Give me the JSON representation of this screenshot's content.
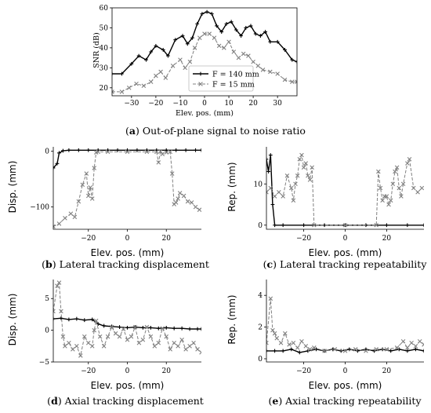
{
  "chart_data": [
    {
      "id": "a",
      "type": "line",
      "caption_letter": "a",
      "caption_text": "Out-of-plane signal to noise ratio",
      "xlabel": "Elev. pos. (mm)",
      "ylabel": "SNR (dB)",
      "xlim": [
        -38,
        38
      ],
      "ylim": [
        16,
        60
      ],
      "xticks": [
        -30,
        -20,
        -10,
        0,
        10,
        20,
        30
      ],
      "yticks": [
        20,
        30,
        40,
        50,
        60
      ],
      "legend": "inside-lower-center",
      "series": [
        {
          "name": "F = 140 mm",
          "style": "solid-plus",
          "color": "#000000",
          "x": [
            -38,
            -34,
            -30,
            -27,
            -24,
            -22,
            -20,
            -17,
            -15,
            -12,
            -9,
            -7,
            -5,
            -3,
            -1,
            1,
            3,
            5,
            7,
            9,
            11,
            13,
            15,
            17,
            19,
            21,
            23,
            25,
            27,
            30,
            33,
            36,
            38
          ],
          "y": [
            27,
            27,
            32,
            36,
            34,
            38,
            41,
            39,
            36,
            44,
            46,
            42,
            45,
            52,
            57,
            58,
            57,
            51,
            48,
            52,
            53,
            49,
            46,
            50,
            51,
            47,
            46,
            48,
            43,
            43,
            39,
            34,
            33
          ]
        },
        {
          "name": "F = 15 mm",
          "style": "dashed-x",
          "color": "#808080",
          "x": [
            -38,
            -34,
            -31,
            -28,
            -25,
            -22,
            -20,
            -18,
            -16,
            -13,
            -10,
            -8,
            -6,
            -4,
            -2,
            0,
            2,
            4,
            6,
            8,
            10,
            12,
            14,
            16,
            18,
            20,
            22,
            24,
            27,
            30,
            33,
            36,
            38
          ],
          "y": [
            18,
            18,
            20,
            22,
            21,
            23,
            26,
            28,
            25,
            31,
            34,
            30,
            33,
            40,
            45,
            47,
            47,
            45,
            41,
            40,
            43,
            38,
            35,
            37,
            36,
            33,
            31,
            29,
            28,
            27,
            24,
            23,
            23
          ]
        }
      ]
    },
    {
      "id": "b",
      "type": "line",
      "caption_letter": "b",
      "caption_text": "Lateral tracking displacement",
      "xlabel": "Elev. pos. (mm)",
      "ylabel": "Disp. (mm)",
      "xlim": [
        -38,
        38
      ],
      "ylim": [
        -140,
        8
      ],
      "xticks": [
        -20,
        0,
        20
      ],
      "yticks": [
        -100,
        0
      ],
      "series": [
        {
          "name": "F = 140 mm",
          "style": "solid-plus",
          "color": "#000000",
          "x": [
            -38,
            -36,
            -35,
            -33,
            -30,
            -25,
            -20,
            -15,
            -10,
            -5,
            0,
            5,
            10,
            15,
            20,
            25,
            30,
            35,
            38
          ],
          "y": [
            -30,
            -22,
            -3,
            1,
            2,
            2,
            2,
            2,
            2,
            2,
            2,
            2,
            2,
            2,
            2,
            2,
            2,
            2,
            2
          ]
        },
        {
          "name": "F = 15 mm",
          "style": "dashed-x",
          "color": "#808080",
          "x": [
            -38,
            -35,
            -32,
            -29,
            -27,
            -25,
            -23,
            -21,
            -20,
            -19,
            -18,
            -17,
            -16,
            -15,
            -10,
            0,
            10,
            15,
            16,
            17,
            18,
            20,
            22,
            23,
            24,
            25,
            26,
            27,
            29,
            31,
            33,
            35,
            37
          ],
          "y": [
            -135,
            -130,
            -120,
            -112,
            -118,
            -90,
            -60,
            -40,
            -80,
            -65,
            -85,
            -30,
            -2,
            -1,
            -1,
            -1,
            -1,
            -1,
            -20,
            0,
            -5,
            -2,
            -1,
            -40,
            -95,
            -92,
            -85,
            -75,
            -80,
            -90,
            -92,
            -100,
            -105
          ]
        }
      ]
    },
    {
      "id": "c",
      "type": "line",
      "caption_letter": "c",
      "caption_text": "Lateral tracking repeatability",
      "xlabel": "Elev. pos. (mm)",
      "ylabel": "Rep. (mm)",
      "xlim": [
        -38,
        38
      ],
      "ylim": [
        -1,
        19
      ],
      "xticks": [
        -20,
        0,
        20
      ],
      "yticks": [
        0,
        10
      ],
      "series": [
        {
          "name": "F = 140 mm",
          "style": "solid-plus",
          "color": "#000000",
          "x": [
            -38,
            -37,
            -36,
            -35,
            -34,
            -30,
            -20,
            -10,
            0,
            10,
            20,
            30,
            38
          ],
          "y": [
            16,
            13,
            17,
            5,
            0,
            0,
            0,
            0,
            0,
            0,
            0,
            0,
            0
          ]
        },
        {
          "name": "F = 15 mm",
          "style": "dashed-x",
          "color": "#808080",
          "x": [
            -38,
            -36,
            -34,
            -32,
            -30,
            -28,
            -26,
            -25,
            -24,
            -23,
            -22,
            -21,
            -20,
            -19,
            -18,
            -17,
            -16,
            -15,
            0,
            15,
            16,
            17,
            18,
            19,
            20,
            21,
            22,
            23,
            24,
            25,
            26,
            27,
            28,
            30,
            31,
            33,
            35,
            37
          ],
          "y": [
            8,
            9,
            7,
            8,
            7,
            12,
            9,
            6,
            10,
            12,
            16,
            17,
            14,
            15,
            12,
            11,
            14,
            0,
            0,
            0,
            13,
            9,
            6,
            7,
            7,
            5,
            6,
            10,
            13,
            14,
            9,
            7,
            10,
            15,
            16,
            9,
            8,
            9
          ]
        }
      ]
    },
    {
      "id": "d",
      "type": "line",
      "caption_letter": "d",
      "caption_text": "Axial tracking displacement",
      "xlabel": "Elev. pos. (mm)",
      "ylabel": "Disp. (mm)",
      "xlim": [
        -38,
        38
      ],
      "ylim": [
        -5,
        8
      ],
      "xticks": [
        -20,
        0,
        20
      ],
      "yticks": [
        -5,
        0,
        5
      ],
      "series": [
        {
          "name": "F = 140 mm",
          "style": "solid-plus",
          "color": "#000000",
          "x": [
            -38,
            -34,
            -30,
            -26,
            -22,
            -18,
            -15,
            -12,
            -8,
            -4,
            0,
            4,
            8,
            12,
            16,
            20,
            24,
            28,
            32,
            36,
            38
          ],
          "y": [
            1.8,
            1.9,
            1.7,
            1.8,
            1.6,
            1.7,
            1.0,
            0.7,
            0.6,
            0.5,
            0.4,
            0.5,
            0.4,
            0.4,
            0.3,
            0.4,
            0.3,
            0.3,
            0.2,
            0.2,
            0.2
          ]
        },
        {
          "name": "F = 15 mm",
          "style": "dashed-x",
          "color": "#808080",
          "x": [
            -38,
            -36,
            -35,
            -34,
            -33,
            -32,
            -30,
            -28,
            -26,
            -24,
            -22,
            -20,
            -18,
            -17,
            -16,
            -14,
            -12,
            -10,
            -8,
            -6,
            -4,
            -2,
            0,
            2,
            4,
            6,
            8,
            10,
            12,
            14,
            16,
            18,
            20,
            22,
            24,
            26,
            28,
            30,
            32,
            34,
            36,
            38
          ],
          "y": [
            3,
            7,
            7.5,
            3,
            -1,
            -2.5,
            -2,
            -3,
            -2.5,
            -4,
            -1,
            -2,
            -2.5,
            0,
            1.5,
            -1,
            -2.5,
            -1,
            0.5,
            -0.5,
            -1,
            0.2,
            -1.5,
            -1,
            0.5,
            -2,
            -1.5,
            0.5,
            -1,
            -2.5,
            -2,
            0.3,
            -1,
            -3,
            -2,
            -2.5,
            -1.5,
            -3,
            -2.5,
            -2,
            -3,
            -3.5
          ]
        }
      ]
    },
    {
      "id": "e",
      "type": "line",
      "caption_letter": "e",
      "caption_text": "Axial tracking repeatability",
      "xlabel": "Elev. pos. (mm)",
      "ylabel": "Rep. (mm)",
      "xlim": [
        -38,
        38
      ],
      "ylim": [
        -0.2,
        5
      ],
      "xticks": [
        -20,
        0,
        20
      ],
      "yticks": [
        0,
        2,
        4
      ],
      "series": [
        {
          "name": "F = 140 mm",
          "style": "solid-plus",
          "color": "#000000",
          "x": [
            -38,
            -34,
            -30,
            -26,
            -22,
            -18,
            -14,
            -10,
            -6,
            -2,
            2,
            6,
            10,
            14,
            18,
            22,
            26,
            30,
            34,
            38
          ],
          "y": [
            0.5,
            0.5,
            0.5,
            0.6,
            0.4,
            0.5,
            0.6,
            0.5,
            0.6,
            0.5,
            0.6,
            0.5,
            0.6,
            0.5,
            0.6,
            0.5,
            0.6,
            0.5,
            0.6,
            0.5
          ]
        },
        {
          "name": "F = 15 mm",
          "style": "dashed-x",
          "color": "#808080",
          "x": [
            -38,
            -36,
            -35,
            -34,
            -33,
            -31,
            -29,
            -27,
            -25,
            -23,
            -21,
            -19,
            -17,
            -15,
            -10,
            -5,
            0,
            5,
            10,
            15,
            20,
            25,
            28,
            30,
            32,
            34,
            36,
            38
          ],
          "y": [
            1.0,
            3.8,
            1.8,
            1.6,
            1.3,
            1.0,
            1.6,
            0.9,
            1.0,
            0.7,
            1.1,
            0.8,
            0.6,
            0.7,
            0.5,
            0.6,
            0.5,
            0.6,
            0.5,
            0.6,
            0.6,
            0.7,
            1.1,
            0.7,
            1.0,
            0.8,
            1.1,
            0.9
          ]
        }
      ]
    }
  ]
}
